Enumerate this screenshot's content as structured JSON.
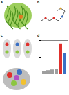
{
  "panels": [
    {
      "label": "a"
    },
    {
      "label": "b"
    },
    {
      "label": "c"
    },
    {
      "label": "d"
    }
  ],
  "chart_data": {
    "type": "bar",
    "categories": [
      null,
      null,
      null,
      null,
      null,
      null
    ],
    "values": [
      8,
      10,
      12,
      14,
      90,
      62
    ],
    "colors": [
      "#9e9e9e",
      "#9e9e9e",
      "#9e9e9e",
      "#9e9e9e",
      "#e0302c",
      "#3a6fc4"
    ],
    "ylim": [
      0,
      100
    ],
    "yticks": [
      0,
      50,
      100
    ],
    "tick_labels": false
  }
}
